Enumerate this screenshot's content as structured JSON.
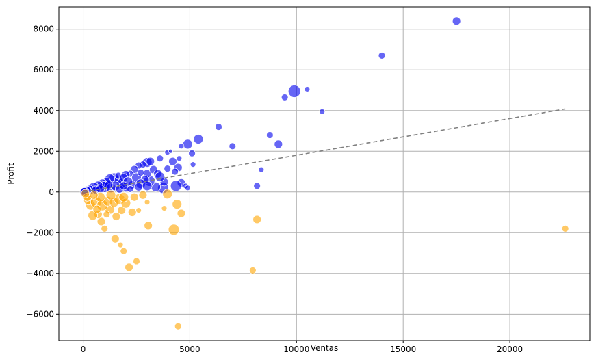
{
  "chart_data": {
    "type": "scatter",
    "xlabel": "Ventas",
    "ylabel": "Profit",
    "xlim": [
      -1140,
      23750
    ],
    "ylim": [
      -7300,
      9100
    ],
    "xticks": [
      0,
      5000,
      10000,
      15000,
      20000
    ],
    "yticks": [
      -6000,
      -4000,
      -2000,
      0,
      2000,
      4000,
      6000,
      8000
    ],
    "grid": true,
    "colors": {
      "positive": "#0000ee",
      "negative": "#ffa500",
      "trend": "#808080"
    },
    "series": [
      {
        "category": "profit-positive",
        "points": [
          {
            "x": 17500,
            "y": 8400,
            "s": 6
          },
          {
            "x": 14000,
            "y": 6700,
            "s": 5
          },
          {
            "x": 9900,
            "y": 4950,
            "s": 9
          },
          {
            "x": 10500,
            "y": 5050,
            "s": 4
          },
          {
            "x": 9450,
            "y": 4650,
            "s": 5
          },
          {
            "x": 11200,
            "y": 3950,
            "s": 4
          },
          {
            "x": 6350,
            "y": 3200,
            "s": 5
          },
          {
            "x": 5400,
            "y": 2600,
            "s": 7
          },
          {
            "x": 8750,
            "y": 2800,
            "s": 5
          },
          {
            "x": 9150,
            "y": 2350,
            "s": 6
          },
          {
            "x": 7000,
            "y": 2250,
            "s": 5
          },
          {
            "x": 4900,
            "y": 2350,
            "s": 7
          },
          {
            "x": 4600,
            "y": 2250,
            "s": 4
          },
          {
            "x": 5100,
            "y": 1900,
            "s": 5
          },
          {
            "x": 8350,
            "y": 1100,
            "s": 4
          },
          {
            "x": 8150,
            "y": 300,
            "s": 5
          },
          {
            "x": 5150,
            "y": 1350,
            "s": 4
          },
          {
            "x": 4500,
            "y": 1650,
            "s": 4
          },
          {
            "x": 4200,
            "y": 1500,
            "s": 6
          },
          {
            "x": 3600,
            "y": 1650,
            "s": 5
          },
          {
            "x": 3950,
            "y": 1950,
            "s": 4
          },
          {
            "x": 4100,
            "y": 2000,
            "s": 3
          },
          {
            "x": 3950,
            "y": 1150,
            "s": 5
          },
          {
            "x": 4450,
            "y": 1200,
            "s": 6
          },
          {
            "x": 4300,
            "y": 1000,
            "s": 5
          },
          {
            "x": 4600,
            "y": 450,
            "s": 6
          },
          {
            "x": 4350,
            "y": 300,
            "s": 8
          },
          {
            "x": 4800,
            "y": 300,
            "s": 4
          },
          {
            "x": 4900,
            "y": 200,
            "s": 4
          },
          {
            "x": 3750,
            "y": 200,
            "s": 8
          },
          {
            "x": 3400,
            "y": 250,
            "s": 7
          },
          {
            "x": 3100,
            "y": 550,
            "s": 8
          },
          {
            "x": 3000,
            "y": 900,
            "s": 6
          },
          {
            "x": 3300,
            "y": 1100,
            "s": 6
          },
          {
            "x": 3000,
            "y": 1450,
            "s": 7
          },
          {
            "x": 2800,
            "y": 1350,
            "s": 5
          },
          {
            "x": 2600,
            "y": 1300,
            "s": 5
          },
          {
            "x": 3150,
            "y": 1500,
            "s": 6
          },
          {
            "x": 2400,
            "y": 1100,
            "s": 6
          },
          {
            "x": 2200,
            "y": 900,
            "s": 5
          },
          {
            "x": 2000,
            "y": 850,
            "s": 6
          },
          {
            "x": 2500,
            "y": 700,
            "s": 7
          },
          {
            "x": 2900,
            "y": 600,
            "s": 6
          },
          {
            "x": 2700,
            "y": 400,
            "s": 7
          },
          {
            "x": 2300,
            "y": 350,
            "s": 6
          },
          {
            "x": 2600,
            "y": 250,
            "s": 6
          },
          {
            "x": 3000,
            "y": 300,
            "s": 7
          },
          {
            "x": 2000,
            "y": 200,
            "s": 6
          },
          {
            "x": 1800,
            "y": 400,
            "s": 7
          },
          {
            "x": 1650,
            "y": 600,
            "s": 6
          },
          {
            "x": 1450,
            "y": 700,
            "s": 7
          },
          {
            "x": 1250,
            "y": 650,
            "s": 7
          },
          {
            "x": 1650,
            "y": 800,
            "s": 5
          },
          {
            "x": 1900,
            "y": 700,
            "s": 6
          },
          {
            "x": 1100,
            "y": 500,
            "s": 6
          },
          {
            "x": 900,
            "y": 400,
            "s": 7
          },
          {
            "x": 1000,
            "y": 250,
            "s": 8
          },
          {
            "x": 700,
            "y": 300,
            "s": 7
          },
          {
            "x": 500,
            "y": 200,
            "s": 8
          },
          {
            "x": 400,
            "y": 150,
            "s": 6
          },
          {
            "x": 300,
            "y": 100,
            "s": 7
          },
          {
            "x": 200,
            "y": 80,
            "s": 6
          },
          {
            "x": 150,
            "y": 50,
            "s": 7
          },
          {
            "x": 80,
            "y": 30,
            "s": 6
          },
          {
            "x": 50,
            "y": 10,
            "s": 6
          },
          {
            "x": 600,
            "y": 100,
            "s": 6
          },
          {
            "x": 800,
            "y": 150,
            "s": 6
          },
          {
            "x": 1300,
            "y": 200,
            "s": 7
          },
          {
            "x": 1500,
            "y": 300,
            "s": 7
          },
          {
            "x": 1700,
            "y": 150,
            "s": 6
          },
          {
            "x": 2100,
            "y": 500,
            "s": 7
          },
          {
            "x": 3500,
            "y": 900,
            "s": 6
          },
          {
            "x": 3800,
            "y": 500,
            "s": 6
          },
          {
            "x": 2200,
            "y": 150,
            "s": 5
          },
          {
            "x": 1200,
            "y": 350,
            "s": 6
          },
          {
            "x": 2700,
            "y": 950,
            "s": 5
          },
          {
            "x": 3600,
            "y": 750,
            "s": 7
          },
          {
            "x": 1900,
            "y": 300,
            "s": 6
          }
        ]
      },
      {
        "category": "profit-negative",
        "points": [
          {
            "x": 22600,
            "y": -1800,
            "s": 5
          },
          {
            "x": 4450,
            "y": -6600,
            "s": 5
          },
          {
            "x": 7950,
            "y": -3850,
            "s": 5
          },
          {
            "x": 2150,
            "y": -3700,
            "s": 6
          },
          {
            "x": 2500,
            "y": -3400,
            "s": 5
          },
          {
            "x": 1900,
            "y": -2900,
            "s": 5
          },
          {
            "x": 1750,
            "y": -2600,
            "s": 4
          },
          {
            "x": 1500,
            "y": -2300,
            "s": 6
          },
          {
            "x": 8150,
            "y": -1350,
            "s": 6
          },
          {
            "x": 4250,
            "y": -1850,
            "s": 8
          },
          {
            "x": 3050,
            "y": -1650,
            "s": 6
          },
          {
            "x": 4600,
            "y": -1050,
            "s": 6
          },
          {
            "x": 4400,
            "y": -600,
            "s": 7
          },
          {
            "x": 3800,
            "y": -800,
            "s": 4
          },
          {
            "x": 3950,
            "y": -100,
            "s": 7
          },
          {
            "x": 2600,
            "y": -900,
            "s": 4
          },
          {
            "x": 2300,
            "y": -1000,
            "s": 6
          },
          {
            "x": 1800,
            "y": -900,
            "s": 6
          },
          {
            "x": 1550,
            "y": -1200,
            "s": 6
          },
          {
            "x": 1250,
            "y": -850,
            "s": 7
          },
          {
            "x": 1000,
            "y": -1800,
            "s": 5
          },
          {
            "x": 850,
            "y": -1450,
            "s": 6
          },
          {
            "x": 700,
            "y": -1100,
            "s": 6
          },
          {
            "x": 450,
            "y": -1150,
            "s": 7
          },
          {
            "x": 350,
            "y": -650,
            "s": 7
          },
          {
            "x": 250,
            "y": -400,
            "s": 7
          },
          {
            "x": 200,
            "y": -250,
            "s": 6
          },
          {
            "x": 600,
            "y": -500,
            "s": 8
          },
          {
            "x": 900,
            "y": -650,
            "s": 8
          },
          {
            "x": 1150,
            "y": -450,
            "s": 7
          },
          {
            "x": 1450,
            "y": -500,
            "s": 7
          },
          {
            "x": 1700,
            "y": -350,
            "s": 8
          },
          {
            "x": 2000,
            "y": -550,
            "s": 7
          },
          {
            "x": 2400,
            "y": -250,
            "s": 6
          },
          {
            "x": 2800,
            "y": -150,
            "s": 6
          },
          {
            "x": 3000,
            "y": -500,
            "s": 4
          },
          {
            "x": 1300,
            "y": -150,
            "s": 7
          },
          {
            "x": 800,
            "y": -250,
            "s": 7
          },
          {
            "x": 500,
            "y": -150,
            "s": 6
          },
          {
            "x": 100,
            "y": -80,
            "s": 6
          },
          {
            "x": 1900,
            "y": -250,
            "s": 7
          },
          {
            "x": 1100,
            "y": -1100,
            "s": 5
          },
          {
            "x": 650,
            "y": -850,
            "s": 6
          }
        ]
      }
    ],
    "trend_line": {
      "x": [
        0,
        22600
      ],
      "y": [
        0,
        4080
      ]
    }
  }
}
